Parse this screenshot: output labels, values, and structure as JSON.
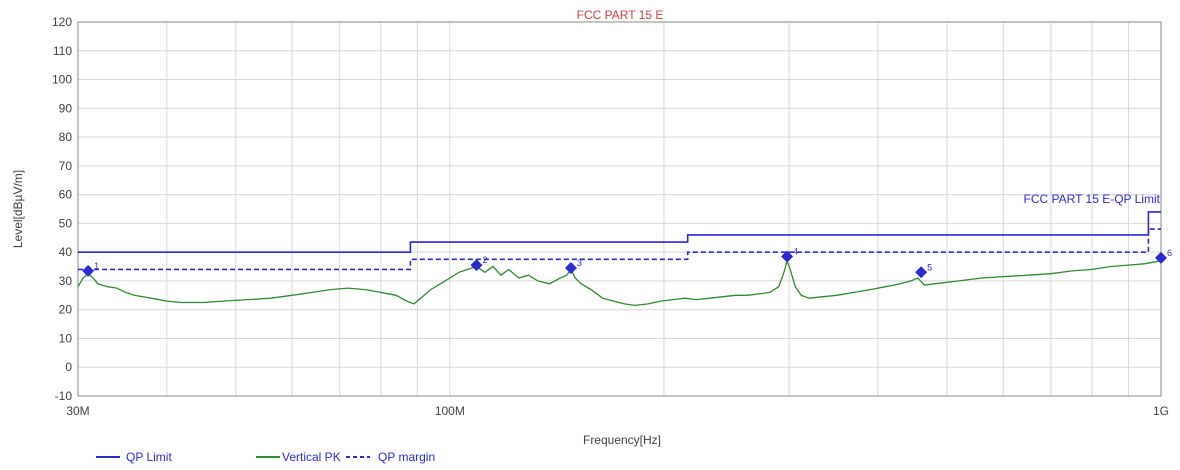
{
  "chart_data": {
    "type": "line",
    "title": "FCC PART 15 E",
    "xlabel": "Frequency[Hz]",
    "ylabel": "Level[dBµV/m]",
    "xscale": "log",
    "xlim": [
      30000000,
      1000000000
    ],
    "ylim": [
      -10,
      120
    ],
    "y_ticks": [
      -10,
      0,
      10,
      20,
      30,
      40,
      50,
      60,
      70,
      80,
      90,
      100,
      110,
      120
    ],
    "x_tick_labels": [
      {
        "value": 30000000,
        "label": "30M"
      },
      {
        "value": 100000000,
        "label": "100M"
      },
      {
        "value": 1000000000,
        "label": "1G"
      }
    ],
    "grid": true,
    "legend_position": "bottom-left",
    "limit_annotation": "FCC PART 15 E-QP Limit",
    "colors": {
      "title": "#d04040",
      "limit": "#2a2ad0",
      "trace": "#2e8b2e",
      "axis_text": "#404040",
      "grid": "#d8d8d8"
    },
    "series": [
      {
        "name": "QP Limit",
        "style": "solid",
        "points": [
          [
            30000000,
            40
          ],
          [
            88000000,
            40
          ],
          [
            88000000,
            43.5
          ],
          [
            216000000,
            43.5
          ],
          [
            216000000,
            46
          ],
          [
            960000000,
            46
          ],
          [
            960000000,
            54
          ],
          [
            1000000000,
            54
          ]
        ]
      },
      {
        "name": "Vertical PK",
        "style": "solid",
        "points": [
          [
            30000000,
            28
          ],
          [
            30500000,
            31
          ],
          [
            31000000,
            32.5
          ],
          [
            31500000,
            31
          ],
          [
            32000000,
            29
          ],
          [
            33000000,
            28
          ],
          [
            34000000,
            27.5
          ],
          [
            35000000,
            26
          ],
          [
            36000000,
            25
          ],
          [
            38000000,
            24
          ],
          [
            40000000,
            23
          ],
          [
            42000000,
            22.5
          ],
          [
            45000000,
            22.5
          ],
          [
            48000000,
            23
          ],
          [
            52000000,
            23.5
          ],
          [
            56000000,
            24
          ],
          [
            60000000,
            25
          ],
          [
            64000000,
            26
          ],
          [
            68000000,
            27
          ],
          [
            72000000,
            27.5
          ],
          [
            76000000,
            27
          ],
          [
            80000000,
            26
          ],
          [
            84000000,
            25
          ],
          [
            87000000,
            23
          ],
          [
            89000000,
            22
          ],
          [
            91000000,
            24
          ],
          [
            94000000,
            27
          ],
          [
            97000000,
            29
          ],
          [
            100000000,
            31
          ],
          [
            103000000,
            33
          ],
          [
            106000000,
            34
          ],
          [
            109000000,
            35
          ],
          [
            112000000,
            33
          ],
          [
            115000000,
            35
          ],
          [
            118000000,
            32
          ],
          [
            121000000,
            34
          ],
          [
            125000000,
            31
          ],
          [
            129000000,
            32
          ],
          [
            133000000,
            30
          ],
          [
            138000000,
            29
          ],
          [
            143000000,
            31
          ],
          [
            146000000,
            32
          ],
          [
            148000000,
            34
          ],
          [
            150000000,
            31
          ],
          [
            153000000,
            29
          ],
          [
            158000000,
            27
          ],
          [
            164000000,
            24
          ],
          [
            170000000,
            23
          ],
          [
            176000000,
            22
          ],
          [
            182000000,
            21.5
          ],
          [
            190000000,
            22
          ],
          [
            198000000,
            23
          ],
          [
            206000000,
            23.5
          ],
          [
            214000000,
            24
          ],
          [
            222000000,
            23.5
          ],
          [
            232000000,
            24
          ],
          [
            242000000,
            24.5
          ],
          [
            252000000,
            25
          ],
          [
            262000000,
            25
          ],
          [
            272000000,
            25.5
          ],
          [
            282000000,
            26
          ],
          [
            290000000,
            28
          ],
          [
            295000000,
            33
          ],
          [
            298000000,
            37
          ],
          [
            301000000,
            34
          ],
          [
            306000000,
            28
          ],
          [
            312000000,
            25
          ],
          [
            320000000,
            24
          ],
          [
            335000000,
            24.5
          ],
          [
            350000000,
            25
          ],
          [
            370000000,
            26
          ],
          [
            390000000,
            27
          ],
          [
            410000000,
            28
          ],
          [
            430000000,
            29
          ],
          [
            445000000,
            30
          ],
          [
            455000000,
            31
          ],
          [
            465000000,
            28.5
          ],
          [
            480000000,
            29
          ],
          [
            520000000,
            30
          ],
          [
            560000000,
            31
          ],
          [
            600000000,
            31.5
          ],
          [
            650000000,
            32
          ],
          [
            700000000,
            32.5
          ],
          [
            750000000,
            33.5
          ],
          [
            800000000,
            34
          ],
          [
            850000000,
            35
          ],
          [
            900000000,
            35.5
          ],
          [
            950000000,
            36
          ],
          [
            1000000000,
            37
          ]
        ]
      },
      {
        "name": "QP margin",
        "style": "dashed",
        "points": [
          [
            30000000,
            34
          ],
          [
            88000000,
            34
          ],
          [
            88000000,
            37.5
          ],
          [
            216000000,
            37.5
          ],
          [
            216000000,
            40
          ],
          [
            960000000,
            40
          ],
          [
            960000000,
            48
          ],
          [
            1000000000,
            48
          ]
        ]
      }
    ],
    "markers": [
      {
        "label": "1",
        "x": 31000000,
        "y": 33.5
      },
      {
        "label": "2",
        "x": 109000000,
        "y": 35.5
      },
      {
        "label": "3",
        "x": 148000000,
        "y": 34.5
      },
      {
        "label": "4",
        "x": 298000000,
        "y": 38.5
      },
      {
        "label": "5",
        "x": 460000000,
        "y": 33
      },
      {
        "label": "6",
        "x": 1000000000,
        "y": 38
      }
    ]
  }
}
